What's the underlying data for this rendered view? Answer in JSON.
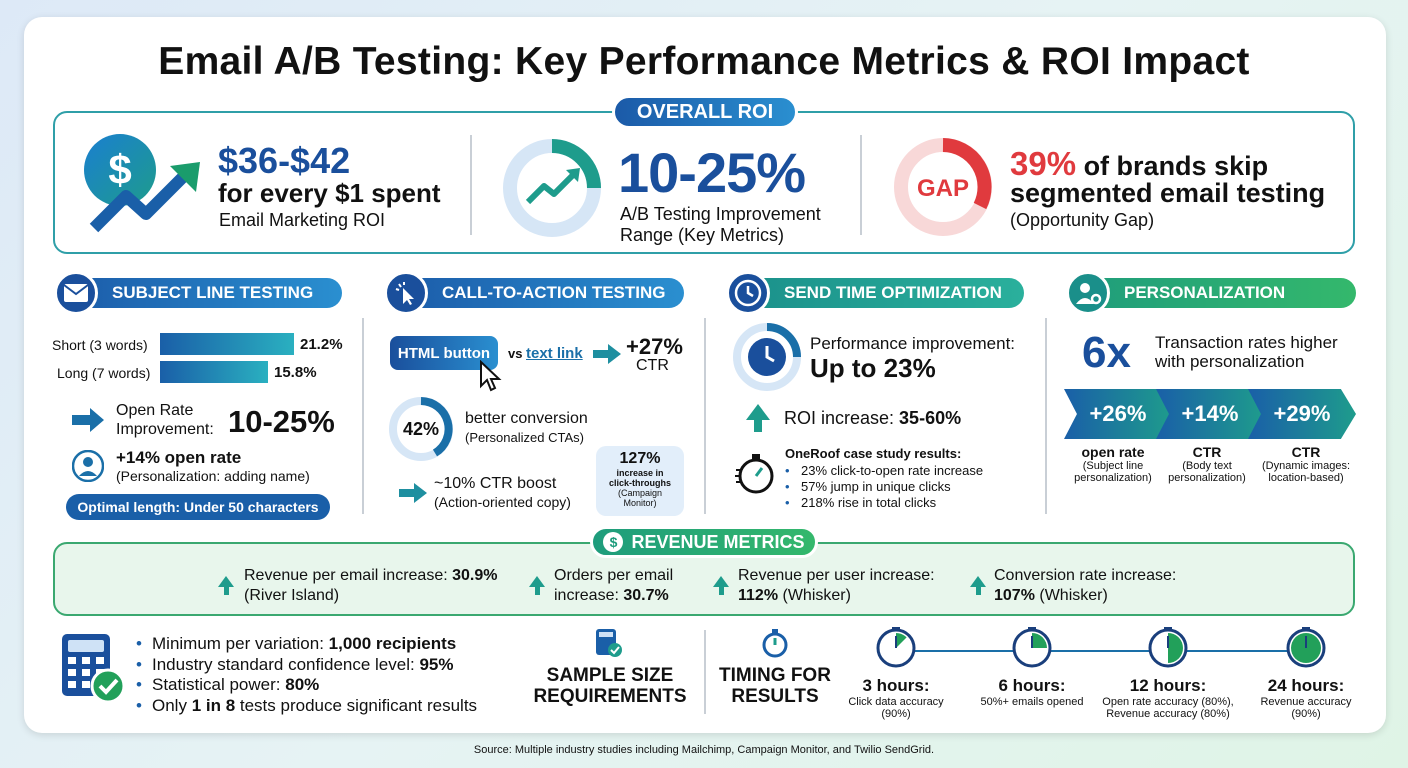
{
  "title": "Email A/B Testing: Key Performance Metrics & ROI Impact",
  "overall_roi": {
    "label": "OVERALL ROI",
    "roi_value": "$36-$42",
    "roi_line": "for every $1 spent",
    "roi_caption": "Email Marketing ROI",
    "ab_value": "10-25%",
    "ab_caption_1": "A/B Testing Improvement",
    "ab_caption_2": "Range (Key Metrics)",
    "gap_icon": "GAP",
    "gap_pct": "39%",
    "gap_line_1": " of brands skip",
    "gap_line_2": "segmented email testing",
    "gap_caption": "(Opportunity Gap)"
  },
  "subject_line": {
    "label": "SUBJECT LINE TESTING",
    "bars": [
      {
        "label": "Short (3 words)",
        "value": "21.2%",
        "fraction": 0.212
      },
      {
        "label": "Long (7 words)",
        "value": "15.8%",
        "fraction": 0.158
      }
    ],
    "open_rate_1": "Open Rate",
    "open_rate_2": "Improvement:",
    "open_rate_value": "10-25%",
    "personal_value": "+14% open rate",
    "personal_caption": "(Personalization: adding name)",
    "optimal": "Optimal length: Under 50 characters"
  },
  "cta": {
    "label": "CALL-TO-ACTION TESTING",
    "html_button": "HTML button",
    "vs": "vs",
    "text_link": "text link",
    "ctr_value": "+27%",
    "ctr_label": "CTR",
    "circle_value": "42%",
    "circle_line": "better conversion",
    "circle_caption": "(Personalized CTAs)",
    "boost_value": "~10% CTR boost",
    "boost_caption": "(Action-oriented copy)",
    "callout_value": "127%",
    "callout_line_1": "increase in",
    "callout_line_2": "click-throughs",
    "callout_caption_1": "(Campaign",
    "callout_caption_2": "Monitor)"
  },
  "send_time": {
    "label": "SEND TIME OPTIMIZATION",
    "perf_line": "Performance improvement:",
    "perf_value": "Up to 23%",
    "roi_label": "ROI increase: ",
    "roi_value": "35-60%",
    "case_title": "OneRoof case study results:",
    "case_items": [
      "23% click-to-open rate increase",
      "57% jump in unique clicks",
      "218% rise in total clicks"
    ]
  },
  "personalization": {
    "label": "PERSONALIZATION",
    "multiplier": "6x",
    "multiplier_line_1": "Transaction rates higher",
    "multiplier_line_2": "with personalization",
    "chevrons": [
      {
        "value": "+26%",
        "metric": "open rate",
        "cap_1": "(Subject line",
        "cap_2": "personalization)"
      },
      {
        "value": "+14%",
        "metric": "CTR",
        "cap_1": "(Body text",
        "cap_2": "personalization)"
      },
      {
        "value": "+29%",
        "metric": "CTR",
        "cap_1": "(Dynamic images:",
        "cap_2": "location-based)"
      }
    ]
  },
  "revenue": {
    "label": "REVENUE METRICS",
    "items": [
      {
        "line_1": "Revenue per email increase: ",
        "value_1": "30.9%",
        "line_2": "(River Island)",
        "value_2": ""
      },
      {
        "line_1": "Orders per email",
        "value_1": "",
        "line_2": "increase: ",
        "value_2": "30.7%"
      },
      {
        "line_1": "Revenue per user increase:",
        "value_1": "",
        "line_2": "",
        "value_2": "112%",
        "line_2b": " (Whisker)"
      },
      {
        "line_1": "Conversion rate increase:",
        "value_1": "",
        "line_2": "",
        "value_2": "107%",
        "line_2b": " (Whisker)"
      }
    ]
  },
  "sample": {
    "items": [
      {
        "text": "Minimum per variation: ",
        "bold": "1,000 recipients",
        "after": ""
      },
      {
        "text": "Industry standard confidence level: ",
        "bold": "95%",
        "after": ""
      },
      {
        "text": "Statistical power: ",
        "bold": "80%",
        "after": ""
      },
      {
        "text": "Only ",
        "bold": "1 in 8",
        "after": " tests produce significant results"
      }
    ],
    "label_1": "SAMPLE SIZE",
    "label_2": "REQUIREMENTS"
  },
  "timing": {
    "label_1": "TIMING FOR",
    "label_2": "RESULTS",
    "points": [
      {
        "time": "3 hours:",
        "cap_1": "Click data accuracy",
        "cap_2": "(90%)",
        "fill": 0.125
      },
      {
        "time": "6 hours:",
        "cap_1": "50%+ emails opened",
        "cap_2": "",
        "fill": 0.25
      },
      {
        "time": "12 hours:",
        "cap_1": "Open rate accuracy (80%),",
        "cap_2": "Revenue accuracy (80%)",
        "fill": 0.5
      },
      {
        "time": "24 hours:",
        "cap_1": "Revenue accuracy",
        "cap_2": "(90%)",
        "fill": 1.0
      }
    ]
  },
  "source": "Source: Multiple industry studies including Mailchimp, Campaign Monitor, and Twilio SendGrid.",
  "colors": {
    "navy": "#1a4f9c",
    "teal": "#1e9c8c",
    "red": "#e03a3e",
    "green": "#22a05a"
  }
}
